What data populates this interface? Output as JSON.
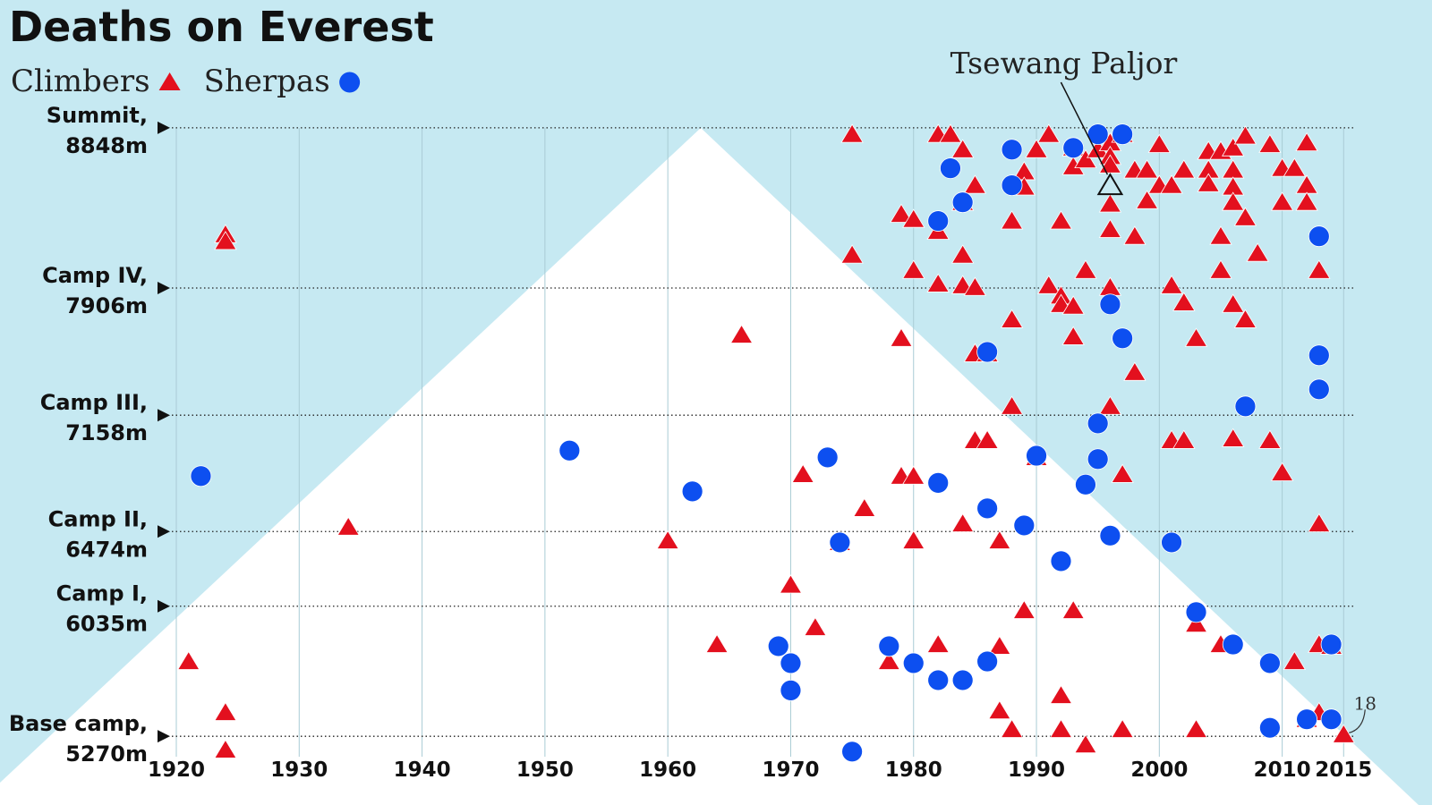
{
  "chart_data": {
    "type": "scatter",
    "title": "Deaths on Everest",
    "xlim": [
      1920,
      2016
    ],
    "ylim": [
      5150,
      8900
    ],
    "xticks": [
      1920,
      1930,
      1940,
      1950,
      1960,
      1970,
      1980,
      1990,
      2000,
      2010,
      2015
    ],
    "yticks": [
      {
        "value": 8848,
        "label": "Summit, 8848m"
      },
      {
        "value": 7906,
        "label": "Camp IV, 7906m"
      },
      {
        "value": 7158,
        "label": "Camp III, 7158m"
      },
      {
        "value": 6474,
        "label": "Camp II, 6474m"
      },
      {
        "value": 6035,
        "label": "Camp I, 6035m"
      },
      {
        "value": 5270,
        "label": "Base camp, 5270m"
      }
    ],
    "grid": true,
    "series": [
      {
        "name": "Climbers",
        "color": "#e3101e",
        "marker": "triangle",
        "x": [
          1921,
          1924,
          1924,
          1924,
          1924,
          1934,
          1960,
          1964,
          1966,
          1970,
          1971,
          1972,
          1974,
          1975,
          1975,
          1976,
          1978,
          1979,
          1979,
          1979,
          1980,
          1980,
          1980,
          1980,
          1982,
          1982,
          1982,
          1982,
          1983,
          1984,
          1984,
          1984,
          1984,
          1984,
          1985,
          1985,
          1985,
          1985,
          1986,
          1986,
          1987,
          1987,
          1987,
          1988,
          1988,
          1988,
          1988,
          1989,
          1989,
          1989,
          1990,
          1990,
          1991,
          1991,
          1992,
          1992,
          1992,
          1992,
          1992,
          1993,
          1993,
          1993,
          1993,
          1993,
          1994,
          1994,
          1994,
          1995,
          1996,
          1996,
          1996,
          1996,
          1996,
          1996,
          1996,
          1997,
          1997,
          1997,
          1998,
          1998,
          1998,
          1999,
          1999,
          2000,
          2000,
          2001,
          2001,
          2001,
          2002,
          2002,
          2002,
          2003,
          2003,
          2003,
          2004,
          2004,
          2004,
          2005,
          2005,
          2005,
          2005,
          2006,
          2006,
          2006,
          2006,
          2006,
          2006,
          2007,
          2007,
          2007,
          2008,
          2009,
          2009,
          2010,
          2010,
          2010,
          2011,
          2011,
          2012,
          2012,
          2012,
          2012,
          2013,
          2013,
          2013,
          2013,
          2014,
          2015
        ],
        "values": [
          5710,
          8220,
          8180,
          5410,
          5190,
          6500,
          6420,
          5810,
          7630,
          6160,
          6810,
          5910,
          6410,
          8810,
          8100,
          6610,
          5710,
          7610,
          8340,
          6800,
          8310,
          8010,
          6800,
          6420,
          8810,
          8240,
          7930,
          5810,
          8810,
          8720,
          8410,
          8100,
          7920,
          6520,
          8510,
          7910,
          7520,
          7010,
          7520,
          7010,
          6420,
          5800,
          5420,
          8300,
          7720,
          7210,
          5310,
          8590,
          8500,
          6010,
          8720,
          6910,
          8810,
          7920,
          8300,
          7860,
          7810,
          5510,
          5310,
          8730,
          8620,
          7800,
          7620,
          6010,
          8660,
          8010,
          5220,
          8720,
          8760,
          8680,
          8630,
          8400,
          8250,
          7910,
          7210,
          8810,
          6810,
          5310,
          8600,
          8210,
          7410,
          8600,
          8420,
          8750,
          8510,
          8510,
          7920,
          7010,
          8600,
          7820,
          7010,
          7610,
          5930,
          5310,
          8710,
          8600,
          8520,
          8710,
          8210,
          8010,
          5810,
          8730,
          8600,
          8500,
          8410,
          7810,
          7020,
          8800,
          8320,
          7720,
          8110,
          8750,
          7010,
          8610,
          8410,
          6820,
          8610,
          5710,
          8760,
          8510,
          8410,
          5370,
          8010,
          6520,
          5810,
          5410,
          5800,
          5280
        ]
      },
      {
        "name": "Sherpas",
        "color": "#0d4ff0",
        "marker": "circle",
        "x": [
          1922,
          1952,
          1962,
          1969,
          1970,
          1970,
          1973,
          1974,
          1975,
          1978,
          1980,
          1982,
          1982,
          1982,
          1983,
          1984,
          1984,
          1986,
          1986,
          1986,
          1988,
          1988,
          1989,
          1990,
          1992,
          1993,
          1994,
          1995,
          1995,
          1995,
          1996,
          1996,
          1997,
          1997,
          2001,
          2003,
          2006,
          2007,
          2009,
          2009,
          2012,
          2013,
          2013,
          2013,
          2014,
          2014
        ],
        "values": [
          6800,
          6950,
          6710,
          5800,
          5700,
          5540,
          6910,
          6410,
          5180,
          5800,
          5700,
          8300,
          6760,
          5600,
          8610,
          8410,
          5600,
          7530,
          6610,
          5710,
          8720,
          8510,
          6510,
          6920,
          6300,
          8730,
          6750,
          8810,
          7110,
          6900,
          7810,
          6450,
          8810,
          7610,
          6410,
          6000,
          5810,
          7210,
          5700,
          5320,
          5370,
          8210,
          7510,
          7310,
          5810,
          5370
        ]
      }
    ],
    "annotations": [
      {
        "text": "Tsewang Paljor",
        "x": 1996,
        "y": 8510
      },
      {
        "text": "18",
        "x": 2015,
        "y": 5280
      }
    ]
  }
}
